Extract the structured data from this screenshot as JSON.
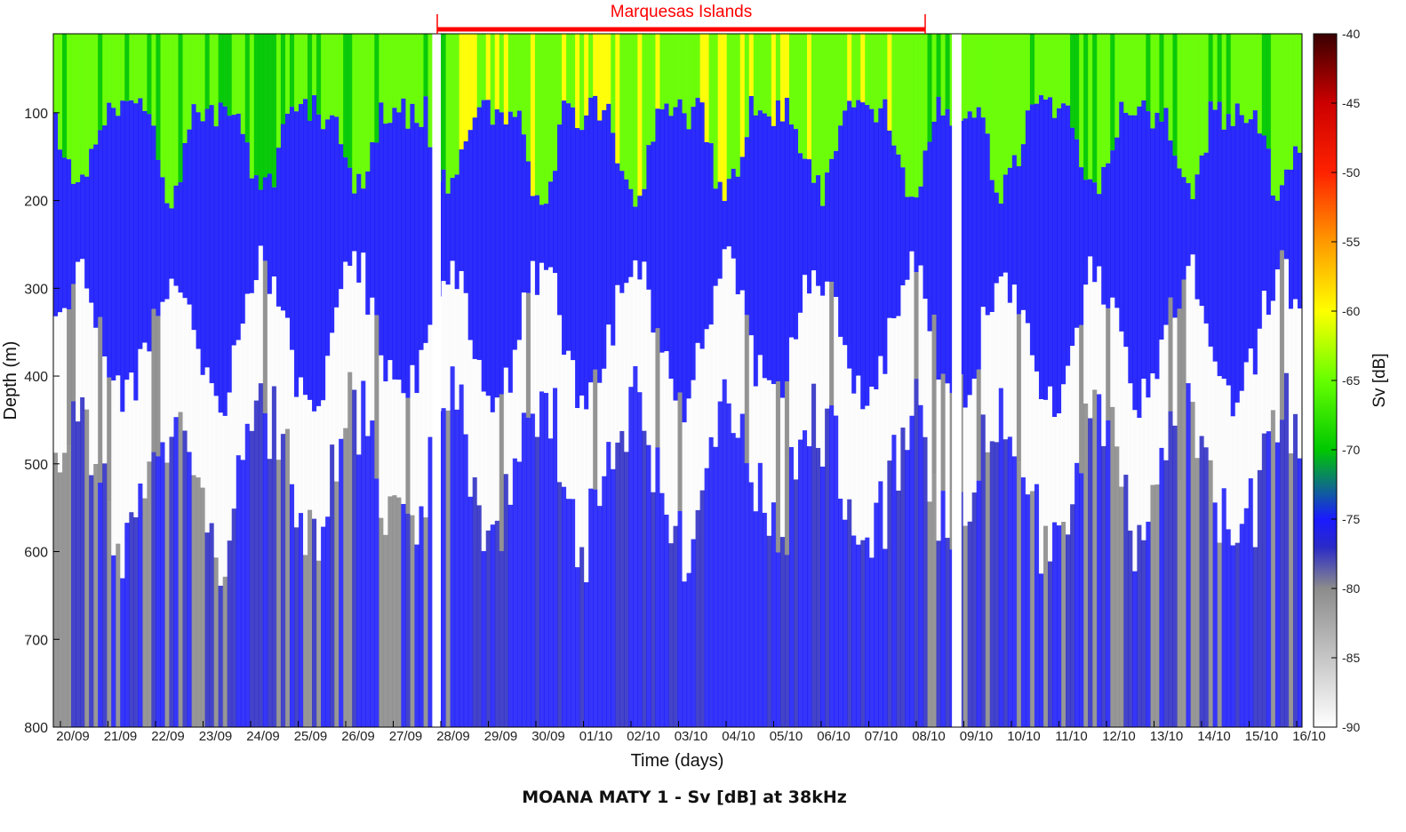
{
  "chart_data": {
    "type": "heatmap",
    "title": "MOANA MATY 1 - Sv [dB] at 38kHz",
    "xlabel": "Time (days)",
    "ylabel": "Depth (m)",
    "x_ticks": [
      "20/09",
      "21/09",
      "22/09",
      "23/09",
      "24/09",
      "25/09",
      "26/09",
      "27/09",
      "28/09",
      "29/09",
      "30/09",
      "01/10",
      "02/10",
      "03/10",
      "04/10",
      "05/10",
      "06/10",
      "07/10",
      "08/10",
      "09/10",
      "10/10",
      "11/10",
      "12/10",
      "13/10",
      "14/10",
      "15/10",
      "16/10"
    ],
    "y_ticks": [
      "100",
      "200",
      "300",
      "400",
      "500",
      "600",
      "700",
      "800"
    ],
    "ylim": [
      10,
      800
    ],
    "y_reversed": true,
    "colorbar": {
      "label": "Sv [dB]",
      "range": [
        -90,
        -40
      ],
      "ticks": [
        "-40",
        "-45",
        "-50",
        "-55",
        "-60",
        "-65",
        "-70",
        "-75",
        "-80",
        "-85",
        "-90"
      ],
      "stops": [
        {
          "value": -90,
          "color": "#ffffff"
        },
        {
          "value": -80,
          "color": "#8c8c8c"
        },
        {
          "value": -77,
          "color": "#2a2ac8"
        },
        {
          "value": -75,
          "color": "#1a1aff"
        },
        {
          "value": -70,
          "color": "#00c800"
        },
        {
          "value": -65,
          "color": "#66ff00"
        },
        {
          "value": -60,
          "color": "#ffff00"
        },
        {
          "value": -55,
          "color": "#ff9900"
        },
        {
          "value": -50,
          "color": "#ff2200"
        },
        {
          "value": -45,
          "color": "#cc0000"
        },
        {
          "value": -40,
          "color": "#3a0000"
        }
      ]
    },
    "annotation": {
      "text": "Marquesas Islands",
      "from": "28/09",
      "to": "08/10",
      "color": "#ff0000"
    },
    "data_gaps": [
      "27/09–28/09",
      "08/10–09/10"
    ]
  }
}
